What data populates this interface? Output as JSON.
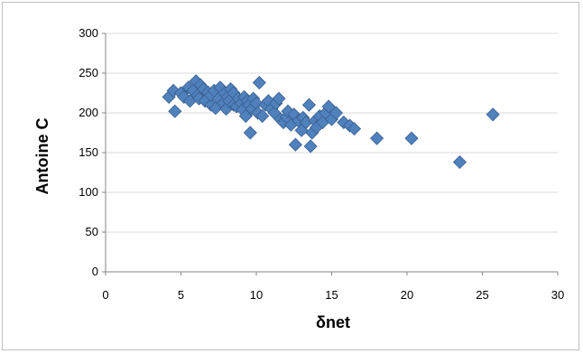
{
  "chart_data": {
    "type": "scatter",
    "title": "",
    "xlabel": "δnet",
    "ylabel": "Antoine C",
    "xlim": [
      0,
      30
    ],
    "ylim": [
      0,
      300
    ],
    "x_ticks": [
      "0",
      "5",
      "10",
      "15",
      "20",
      "25",
      "30"
    ],
    "y_ticks": [
      "0",
      "50",
      "100",
      "150",
      "200",
      "250",
      "300"
    ],
    "grid": "horizontal",
    "legend": "none",
    "marker": "diamond",
    "colors": {
      "marker_fill": "#4F81BD",
      "marker_stroke": "#3A5F8F",
      "gridline": "#D9D9D9",
      "axis": "#868686",
      "border": "#BFBFBF"
    },
    "series": [
      {
        "points": [
          [
            4.2,
            220
          ],
          [
            4.5,
            228
          ],
          [
            4.6,
            202
          ],
          [
            5.0,
            225
          ],
          [
            5.2,
            220
          ],
          [
            5.5,
            232
          ],
          [
            5.6,
            215
          ],
          [
            5.8,
            228
          ],
          [
            6.0,
            240
          ],
          [
            6.1,
            222
          ],
          [
            6.2,
            218
          ],
          [
            6.3,
            235
          ],
          [
            6.5,
            230
          ],
          [
            6.6,
            215
          ],
          [
            6.8,
            226
          ],
          [
            7.0,
            210
          ],
          [
            7.0,
            222
          ],
          [
            7.2,
            228
          ],
          [
            7.3,
            206
          ],
          [
            7.5,
            218
          ],
          [
            7.6,
            232
          ],
          [
            7.8,
            212
          ],
          [
            7.9,
            225
          ],
          [
            8.0,
            205
          ],
          [
            8.1,
            220
          ],
          [
            8.2,
            215
          ],
          [
            8.3,
            230
          ],
          [
            8.5,
            210
          ],
          [
            8.5,
            225
          ],
          [
            8.7,
            208
          ],
          [
            8.8,
            218
          ],
          [
            9.0,
            212
          ],
          [
            9.1,
            204
          ],
          [
            9.2,
            220
          ],
          [
            9.3,
            196
          ],
          [
            9.4,
            215
          ],
          [
            9.5,
            210
          ],
          [
            9.6,
            175
          ],
          [
            9.7,
            205
          ],
          [
            9.8,
            218
          ],
          [
            10.0,
            212
          ],
          [
            10.1,
            200
          ],
          [
            10.2,
            238
          ],
          [
            10.4,
            196
          ],
          [
            10.6,
            210
          ],
          [
            10.8,
            215
          ],
          [
            11.0,
            205
          ],
          [
            11.2,
            200
          ],
          [
            11.3,
            212
          ],
          [
            11.5,
            218
          ],
          [
            11.6,
            192
          ],
          [
            11.8,
            188
          ],
          [
            12.0,
            195
          ],
          [
            12.1,
            202
          ],
          [
            12.3,
            185
          ],
          [
            12.5,
            198
          ],
          [
            12.6,
            160
          ],
          [
            12.8,
            190
          ],
          [
            13.0,
            178
          ],
          [
            13.1,
            194
          ],
          [
            13.3,
            188
          ],
          [
            13.5,
            210
          ],
          [
            13.6,
            158
          ],
          [
            13.7,
            175
          ],
          [
            13.9,
            190
          ],
          [
            14.0,
            182
          ],
          [
            14.2,
            196
          ],
          [
            14.4,
            188
          ],
          [
            14.6,
            200
          ],
          [
            14.8,
            208
          ],
          [
            15.0,
            192
          ],
          [
            15.3,
            200
          ],
          [
            15.8,
            188
          ],
          [
            16.2,
            184
          ],
          [
            16.5,
            180
          ],
          [
            18.0,
            168
          ],
          [
            20.3,
            168
          ],
          [
            23.5,
            138
          ],
          [
            25.7,
            198
          ]
        ]
      }
    ]
  }
}
